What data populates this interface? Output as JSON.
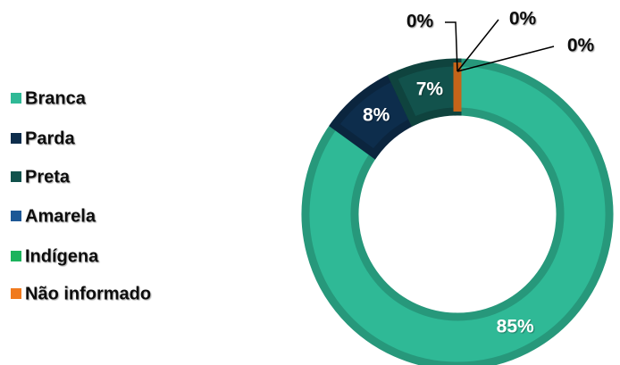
{
  "chart_data": {
    "type": "donut",
    "categories": [
      "Branca",
      "Parda",
      "Preta",
      "Amarela",
      "Indígena",
      "Não informado"
    ],
    "values": [
      85,
      8,
      7,
      0,
      0,
      0
    ],
    "value_labels": [
      "85%",
      "8%",
      "7%",
      "0%",
      "0%",
      "0%"
    ],
    "colors": [
      "#2fb996",
      "#0d2d4c",
      "#12524c",
      "#1d5896",
      "#1cb35c",
      "#f07a1e"
    ],
    "legend": "left"
  }
}
